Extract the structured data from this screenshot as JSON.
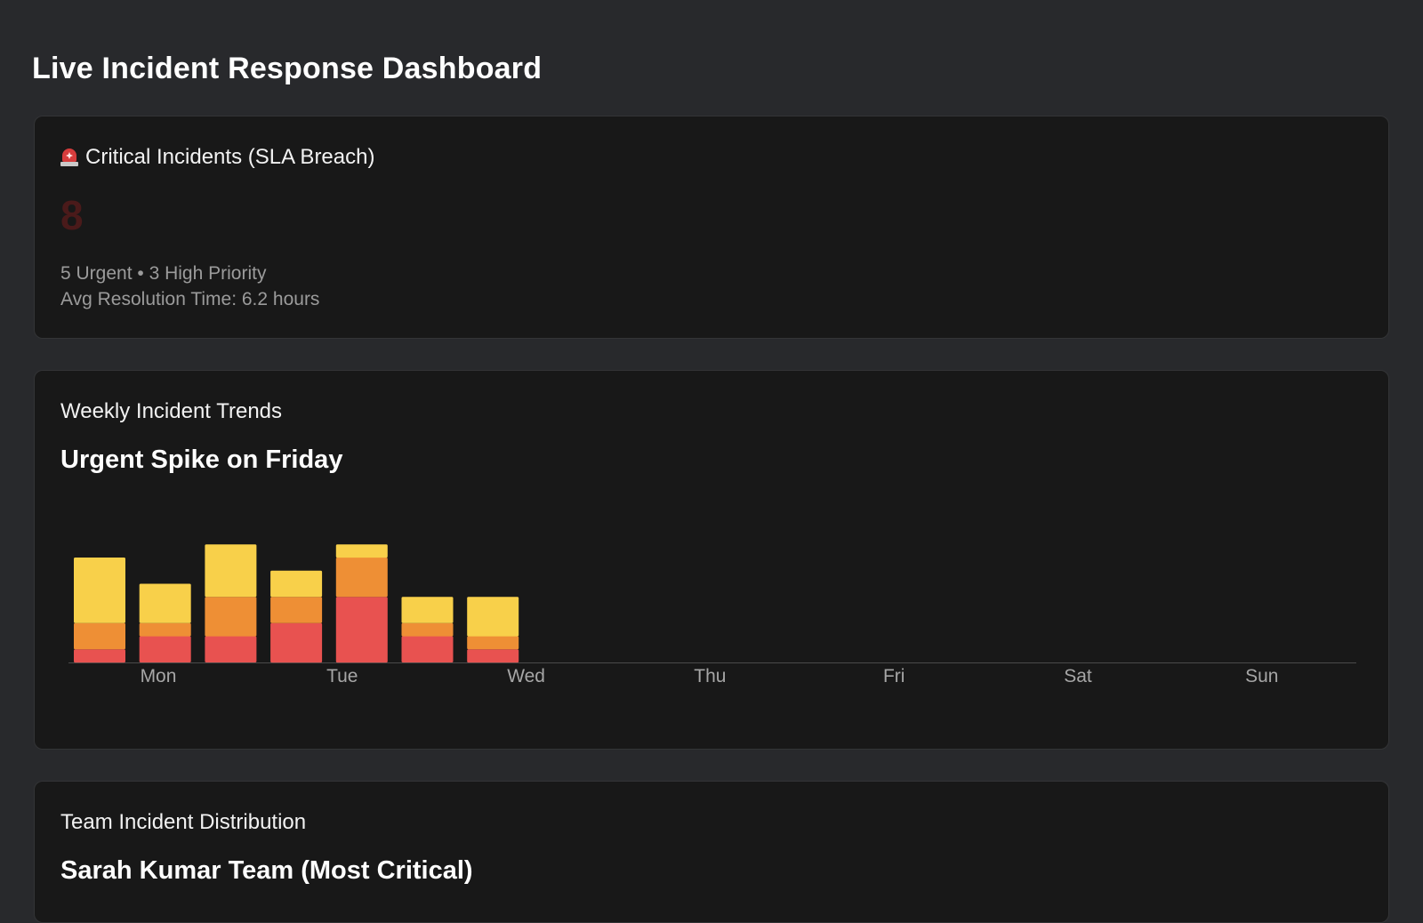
{
  "page": {
    "title": "Live Incident Response Dashboard"
  },
  "critical_card": {
    "title": "Critical Incidents (SLA Breach)",
    "icon": "siren-icon",
    "count": "8",
    "count_color": "#4a1a1a",
    "breakdown": "5 Urgent • 3 High Priority",
    "avg_resolution": "Avg Resolution Time: 6.2 hours"
  },
  "trends_card": {
    "label": "Weekly Incident Trends",
    "heading": "Urgent Spike on Friday"
  },
  "team_card": {
    "label": "Team Incident Distribution",
    "heading": "Sarah Kumar Team (Most Critical)"
  },
  "colors": {
    "background": "#28292c",
    "card": "#181818",
    "urgent": "#e85250",
    "high": "#ee8f35",
    "medium": "#f8d04a",
    "axis": "#4a4a4a",
    "tick": "#a6a6a6"
  },
  "chart_data": {
    "type": "bar",
    "stacked": true,
    "title": "",
    "xlabel": "",
    "ylabel": "",
    "categories": [
      "Mon",
      "Tue",
      "Wed",
      "Thu",
      "Fri",
      "Sat",
      "Sun"
    ],
    "bar_count": 7,
    "series": [
      {
        "key": "urgent",
        "values": [
          1,
          2,
          2,
          3,
          5,
          2,
          1
        ]
      },
      {
        "key": "high",
        "values": [
          2,
          1,
          3,
          2,
          3,
          1,
          1
        ]
      },
      {
        "key": "medium",
        "values": [
          5,
          3,
          4,
          2,
          1,
          2,
          3
        ]
      }
    ],
    "ylim": [
      0,
      12
    ],
    "grid": false,
    "legend": "none"
  }
}
